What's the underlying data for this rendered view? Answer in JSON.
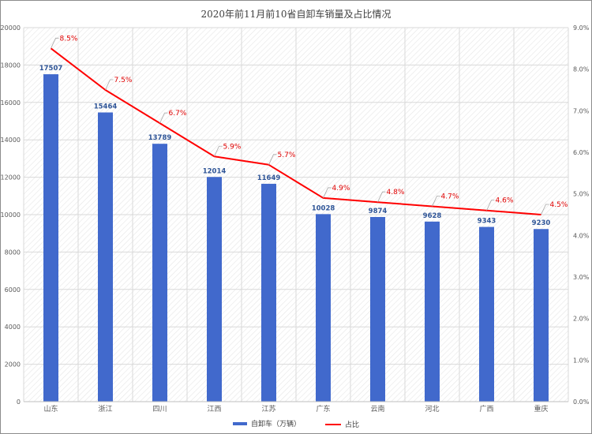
{
  "title": "2020年前11月前10省自卸车销量及占比情况",
  "colors": {
    "bar": "#4169cc",
    "line": "#ff0000",
    "bar_label": "#2f5597",
    "grid": "#d9d9d9"
  },
  "chart_data": {
    "type": "bar",
    "categories": [
      "山东",
      "浙江",
      "四川",
      "江西",
      "江苏",
      "广东",
      "云南",
      "河北",
      "广西",
      "重庆"
    ],
    "series": [
      {
        "name": "自卸车（万辆）",
        "type": "bar",
        "axis": "left",
        "values": [
          17507,
          15464,
          13789,
          12014,
          11649,
          10028,
          9874,
          9628,
          9343,
          9230
        ],
        "labels": [
          "17507",
          "15464",
          "13789",
          "12014",
          "11649",
          "10028",
          "9874",
          "9628",
          "9343",
          "9230"
        ]
      },
      {
        "name": "占比",
        "type": "line",
        "axis": "right",
        "values": [
          8.5,
          7.5,
          6.7,
          5.9,
          5.7,
          4.9,
          4.8,
          4.7,
          4.6,
          4.5
        ],
        "labels": [
          "8.5%",
          "7.5%",
          "6.7%",
          "5.9%",
          "5.7%",
          "4.9%",
          "4.8%",
          "4.7%",
          "4.6%",
          "4.5%"
        ]
      }
    ],
    "y_left": {
      "ylim": [
        0,
        20000
      ],
      "ticks": [
        "0",
        "2000",
        "4000",
        "6000",
        "8000",
        "10000",
        "12000",
        "14000",
        "16000",
        "18000",
        "20000"
      ]
    },
    "y_right": {
      "ylim": [
        0,
        9
      ],
      "ticks": [
        "0.0%",
        "1.0%",
        "2.0%",
        "3.0%",
        "4.0%",
        "5.0%",
        "6.0%",
        "7.0%",
        "8.0%",
        "9.0%"
      ]
    },
    "grid": true,
    "legend": "bottom"
  }
}
